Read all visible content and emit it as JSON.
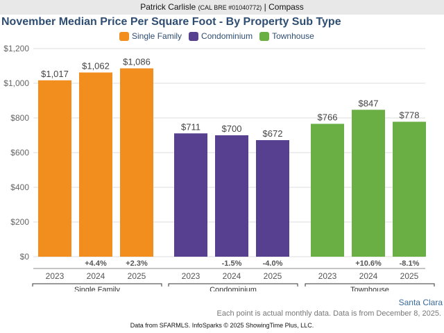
{
  "header": {
    "agent_name": "Patrick Carlisle",
    "license": "(CAL BRE #01040772)",
    "separator": "|",
    "brokerage": "Compass"
  },
  "footer": {
    "location": "Santa Clara",
    "note": "Each point is actual monthly data. Data is from December 8, 2025.",
    "source": "Data from SFARMLS. InfoSparks © 2025 ShowingTime Plus, LLC."
  },
  "chart_data": {
    "type": "bar",
    "title": "November Median Price Per Square Foot - By Property Sub Type",
    "xlabel": "",
    "ylabel": "",
    "ylim": [
      0,
      1200
    ],
    "yticks": [
      0,
      200,
      400,
      600,
      800,
      1000,
      1200
    ],
    "ytick_labels": [
      "$0",
      "$200",
      "$400",
      "$600",
      "$800",
      "$1,000",
      "$1,200"
    ],
    "grid": true,
    "legend_position": "top-center",
    "legend": [
      {
        "name": "Single Family",
        "color": "#f28e1e"
      },
      {
        "name": "Condominium",
        "color": "#57408f"
      },
      {
        "name": "Townhouse",
        "color": "#6aaf43"
      }
    ],
    "groups": [
      {
        "name": "Single Family",
        "color": "#f28e1e",
        "categories": [
          "2023",
          "2024",
          "2025"
        ],
        "values": [
          1017,
          1062,
          1086
        ],
        "labels": [
          "$1,017",
          "$1,062",
          "$1,086"
        ],
        "changes": [
          "",
          "+4.4%",
          "+2.3%"
        ]
      },
      {
        "name": "Condominium",
        "color": "#57408f",
        "categories": [
          "2023",
          "2024",
          "2025"
        ],
        "values": [
          711,
          700,
          672
        ],
        "labels": [
          "$711",
          "$700",
          "$672"
        ],
        "changes": [
          "",
          "-1.5%",
          "-4.0%"
        ]
      },
      {
        "name": "Townhouse",
        "color": "#6aaf43",
        "categories": [
          "2023",
          "2024",
          "2025"
        ],
        "values": [
          766,
          847,
          778
        ],
        "labels": [
          "$766",
          "$847",
          "$778"
        ],
        "changes": [
          "",
          "+10.6%",
          "-8.1%"
        ]
      }
    ]
  }
}
